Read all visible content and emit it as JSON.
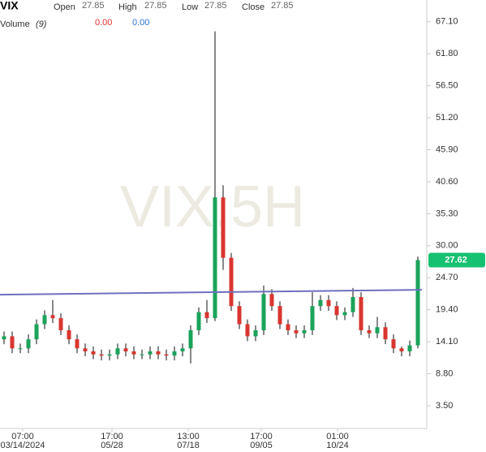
{
  "chart_data": {
    "type": "candlestick",
    "symbol": "VIX",
    "watermark": "VIX,5H",
    "ohlc_header": [
      {
        "label": "Open",
        "value": "27.85"
      },
      {
        "label": "High",
        "value": "27.85"
      },
      {
        "label": "Low",
        "value": "27.85"
      },
      {
        "label": "Close",
        "value": "27.85"
      }
    ],
    "volume": {
      "label": "Volume",
      "period": "(9)",
      "values": [
        "0.00",
        "0.00"
      ],
      "colors": [
        "#e03131",
        "#2f6fd6"
      ]
    },
    "up_color": "#1aa35a",
    "down_color": "#d9362f",
    "candles": [
      [
        14.5,
        15.8,
        13.7,
        15
      ],
      [
        15,
        15.8,
        12.2,
        13
      ],
      [
        13,
        13.8,
        12.2,
        13
      ],
      [
        13,
        15.3,
        12.2,
        14.5
      ],
      [
        14.5,
        17.8,
        13.7,
        17
      ],
      [
        17,
        19.3,
        16.2,
        18.5
      ],
      [
        18.5,
        21,
        17.2,
        18
      ],
      [
        18,
        18.8,
        15.2,
        16
      ],
      [
        16,
        16.8,
        13.7,
        14.5
      ],
      [
        14.5,
        15.3,
        12.2,
        13
      ],
      [
        13,
        13.8,
        11.7,
        12.5
      ],
      [
        12.5,
        13.3,
        11.2,
        12
      ],
      [
        12,
        12.8,
        11,
        11.8
      ],
      [
        11.8,
        12.8,
        11,
        12
      ],
      [
        12,
        13.8,
        11.2,
        13
      ],
      [
        13,
        13.8,
        11.7,
        12.5
      ],
      [
        12.5,
        13.3,
        11.2,
        12
      ],
      [
        12,
        12.8,
        11.2,
        12
      ],
      [
        12,
        13.3,
        11.2,
        12.5
      ],
      [
        12.5,
        13.3,
        11.2,
        12
      ],
      [
        12,
        12.8,
        11,
        11.8
      ],
      [
        11.8,
        13.3,
        11,
        12.5
      ],
      [
        12.5,
        13.8,
        11.7,
        13
      ],
      [
        13,
        16.8,
        10.5,
        16
      ],
      [
        16,
        19.8,
        15.2,
        19
      ],
      [
        19,
        21,
        17.2,
        18
      ],
      [
        18,
        65.5,
        17.5,
        38
      ],
      [
        38,
        40,
        26,
        28
      ],
      [
        28,
        28.8,
        19.2,
        20
      ],
      [
        20,
        20.8,
        16.2,
        17
      ],
      [
        17,
        17.8,
        14.2,
        15
      ],
      [
        15,
        16.8,
        14.2,
        16
      ],
      [
        16,
        23.4,
        15.2,
        22
      ],
      [
        22,
        22.8,
        19.2,
        20
      ],
      [
        20,
        20.8,
        16.2,
        17
      ],
      [
        17,
        17.8,
        15.2,
        16
      ],
      [
        16,
        16.8,
        14.7,
        15.5
      ],
      [
        15.5,
        16.8,
        14.7,
        16
      ],
      [
        16,
        22.3,
        15.2,
        20
      ],
      [
        20,
        21.8,
        19.2,
        21
      ],
      [
        21,
        21.8,
        19.2,
        20
      ],
      [
        20,
        20.8,
        17.7,
        18.5
      ],
      [
        18.5,
        19.8,
        17.7,
        19
      ],
      [
        19,
        23,
        18.2,
        21.5
      ],
      [
        21.5,
        22.3,
        15.2,
        16
      ],
      [
        16,
        16.8,
        14.7,
        15.5
      ],
      [
        15.5,
        18.2,
        14.7,
        16.5
      ],
      [
        16.5,
        17.3,
        13.7,
        14.5
      ],
      [
        14.5,
        15.3,
        12.2,
        13
      ],
      [
        13,
        13.3,
        11.7,
        12.5
      ],
      [
        12.5,
        14.3,
        11.7,
        13.5
      ],
      [
        13.5,
        28.2,
        13,
        27.62
      ]
    ],
    "last_color": "#16c172",
    "trendline": {
      "start": 21.9,
      "end": 22.7,
      "color": "#6f6fbf"
    },
    "xlim": [
      -0.5,
      51.5
    ],
    "xticks": [
      {
        "value": 2.3,
        "label": "07:00",
        "sublabel": "03/14/2024"
      },
      {
        "value": 13.3,
        "label": "17:00",
        "sublabel": "05/28"
      },
      {
        "value": 22.7,
        "label": "13:00",
        "sublabel": "07/18"
      },
      {
        "value": 31.7,
        "label": "17:00",
        "sublabel": "09/05"
      },
      {
        "value": 41.1,
        "label": "01:00",
        "sublabel": "10/24"
      }
    ],
    "ylim": [
      0,
      70.7
    ],
    "yticks": [
      {
        "value": 3.5,
        "label": "3.50"
      },
      {
        "value": 8.8,
        "label": "8.80"
      },
      {
        "value": 14.1,
        "label": "14.10"
      },
      {
        "value": 19.4,
        "label": "19.40"
      },
      {
        "value": 24.7,
        "label": "24.70"
      },
      {
        "value": 30,
        "label": "30.00"
      },
      {
        "value": 35.3,
        "label": "35.30"
      },
      {
        "value": 40.6,
        "label": "40.60"
      },
      {
        "value": 45.9,
        "label": "45.90"
      },
      {
        "value": 51.2,
        "label": "51.20"
      },
      {
        "value": 56.5,
        "label": "56.50"
      },
      {
        "value": 61.8,
        "label": "61.80"
      },
      {
        "value": 67.1,
        "label": "67.10"
      }
    ],
    "grid": false
  }
}
